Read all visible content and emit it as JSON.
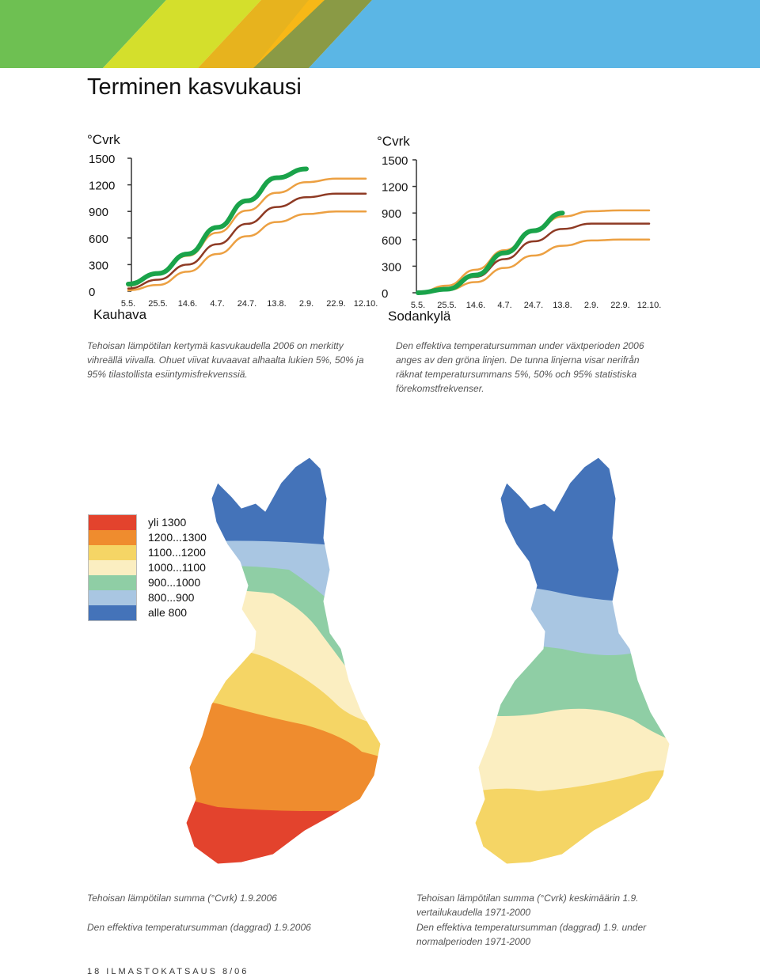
{
  "page_title": "Terminen kasvukausi",
  "colors": {
    "banner": [
      "#6ec052",
      "#d4df2c",
      "#f7b817",
      "#8a9a45",
      "#5bb6e5"
    ],
    "green_line": "#1aa34a",
    "p95_line": "#eca042",
    "p50_line": "#8e3a24",
    "p5_line": "#eca042",
    "axis": "#333333"
  },
  "charts": [
    {
      "id": "kauhava",
      "unit_label": "°Cvrk",
      "station": "Kauhava",
      "y_ticks": [
        "1500",
        "1200",
        "900",
        "600",
        "300",
        "0"
      ],
      "x_ticks": [
        "5.5.",
        "25.5.",
        "14.6.",
        "4.7.",
        "24.7.",
        "13.8.",
        "2.9.",
        "22.9.",
        "12.10."
      ]
    },
    {
      "id": "sodankyla",
      "unit_label": "°Cvrk",
      "station": "Sodankylä",
      "y_ticks": [
        "1500",
        "1200",
        "900",
        "600",
        "300",
        "0"
      ],
      "x_ticks": [
        "5.5.",
        "25.5.",
        "14.6.",
        "4.7.",
        "24.7.",
        "13.8.",
        "2.9.",
        "22.9.",
        "12.10."
      ]
    }
  ],
  "chart_data": [
    {
      "type": "line",
      "title": "Kauhava",
      "ylabel": "°Cvrk",
      "ylim": [
        0,
        1500
      ],
      "x": [
        "5.5.",
        "25.5.",
        "14.6.",
        "4.7.",
        "24.7.",
        "13.8.",
        "2.9.",
        "22.9.",
        "12.10."
      ],
      "series": [
        {
          "values": [
            10,
            70,
            220,
            420,
            620,
            780,
            870,
            900,
            900
          ]
        },
        {
          "values": [
            30,
            130,
            300,
            530,
            760,
            950,
            1060,
            1100,
            1100
          ]
        },
        {
          "values": [
            60,
            190,
            400,
            660,
            910,
            1110,
            1230,
            1270,
            1270
          ]
        },
        {
          "values": [
            80,
            200,
            420,
            720,
            1020,
            1280,
            1380,
            null,
            null
          ]
        }
      ]
    },
    {
      "type": "line",
      "title": "Sodankylä",
      "ylabel": "°Cvrk",
      "ylim": [
        0,
        1500
      ],
      "x": [
        "5.5.",
        "25.5.",
        "14.6.",
        "4.7.",
        "24.7.",
        "13.8.",
        "2.9.",
        "22.9.",
        "12.10."
      ],
      "series": [
        {
          "values": [
            0,
            30,
            120,
            280,
            420,
            530,
            590,
            600,
            600
          ]
        },
        {
          "values": [
            0,
            50,
            180,
            380,
            580,
            720,
            780,
            780,
            780
          ]
        },
        {
          "values": [
            0,
            80,
            260,
            480,
            700,
            860,
            920,
            930,
            930
          ]
        },
        {
          "values": [
            0,
            40,
            200,
            450,
            700,
            900,
            null,
            null,
            null
          ]
        }
      ]
    }
  ],
  "captions": {
    "chart_fi": "Tehoisan lämpötilan kertymä kasvukaudella 2006 on merkitty vihreällä viivalla. Ohuet viivat kuvaavat alhaalta lukien 5%, 50% ja 95% tilastollista esiintymisfrekvenssiä.",
    "chart_sv": "Den effektiva temperatursumman under växtperioden 2006 anges av den gröna linjen. De tunna linjerna visar nerifrån räknat temperatursummans 5%, 50% och 95% statistiska förekomstfrekvenser.",
    "map_left_fi": "Tehoisan lämpötilan summa (°Cvrk) 1.9.2006",
    "map_left_sv": "Den effektiva temperatursumman (daggrad) 1.9.2006",
    "map_right_fi": "Tehoisan lämpötilan summa (°Cvrk) keskimäärin 1.9. vertailukaudella 1971-2000",
    "map_right_sv": "Den effektiva temperatursumman (daggrad) 1.9. under normalperioden 1971-2000"
  },
  "legend": [
    {
      "label": "yli 1300",
      "color": "#e3432d"
    },
    {
      "label": "1200...1300",
      "color": "#ef8c2e"
    },
    {
      "label": "1100...1200",
      "color": "#f5d565"
    },
    {
      "label": "1000...1100",
      "color": "#fbeec1"
    },
    {
      "label": "900...1000",
      "color": "#8fcea5"
    },
    {
      "label": "800...900",
      "color": "#a9c6e2"
    },
    {
      "label": "alle 800",
      "color": "#4473b9"
    }
  ],
  "footer": "18 ILMASTOKATSAUS 8/06"
}
